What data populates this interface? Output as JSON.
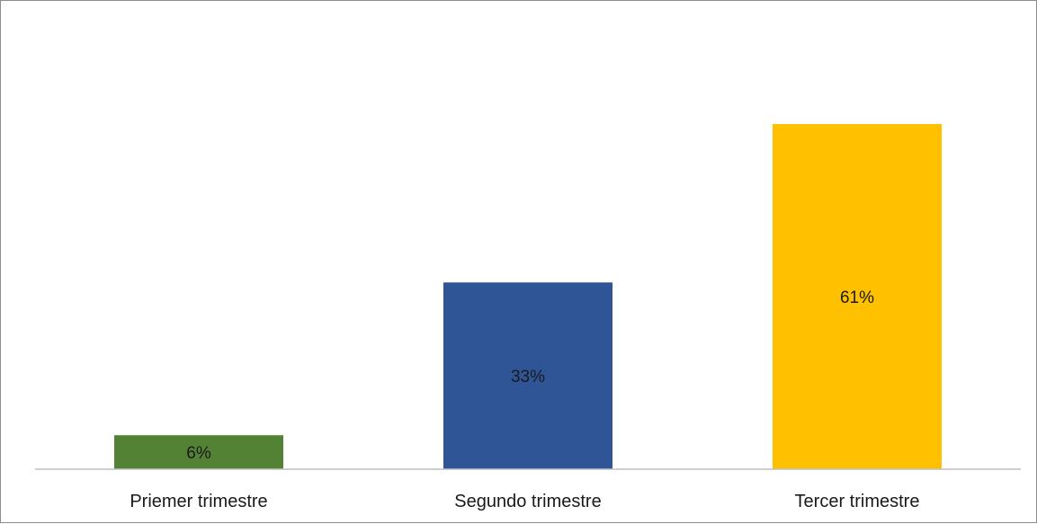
{
  "chart_data": {
    "type": "bar",
    "categories": [
      "Priemer trimestre",
      "Segundo trimestre",
      "Tercer trimestre"
    ],
    "values": [
      6,
      33,
      61
    ],
    "data_labels": [
      "6%",
      "33%",
      "61%"
    ],
    "colors": [
      "#548235",
      "#2f5597",
      "#ffc000"
    ],
    "unit": "%",
    "ylim": [
      0,
      70
    ],
    "grid": false,
    "legend": "none"
  }
}
